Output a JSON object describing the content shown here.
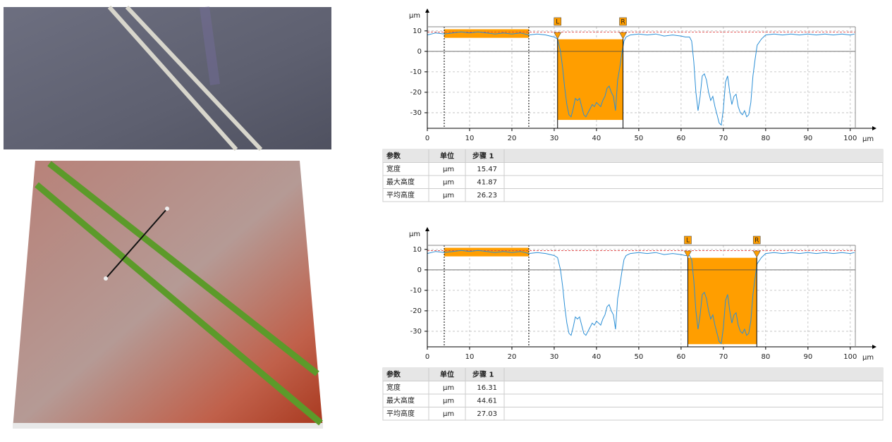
{
  "chart_data": [
    {
      "type": "line",
      "ylabel": "μm",
      "xlabel": "μm",
      "xlim": [
        0,
        101.2
      ],
      "ylim": [
        -37.6,
        12
      ],
      "xticks": [
        0,
        10,
        20,
        30,
        40,
        50,
        60,
        70,
        80,
        90,
        100
      ],
      "yticks": [
        -30,
        -20,
        -10,
        0,
        10
      ],
      "grid": true,
      "ref_line": 9.4,
      "reference": {
        "x": [
          4,
          24
        ],
        "y": [
          6.6,
          10.8
        ]
      },
      "markers": [
        {
          "label": "L",
          "x": 30.8
        },
        {
          "label": "R",
          "x": 46.27
        }
      ],
      "measure_y": [
        -33.5,
        5.9
      ],
      "measure_color": "#ff9e00",
      "series": [
        {
          "color": "#2b8fd6",
          "x": [
            0,
            2,
            4,
            6,
            8,
            10,
            12,
            14,
            16,
            18,
            20,
            22,
            24,
            26,
            28,
            30,
            30.8,
            31.5,
            32,
            32.5,
            33,
            33.5,
            34,
            34.5,
            35,
            35.5,
            36,
            36.5,
            37,
            37.5,
            38,
            38.5,
            39,
            39.5,
            40,
            40.5,
            41,
            41.5,
            42,
            42.5,
            43,
            43.5,
            44,
            44.5,
            45,
            45.5,
            46,
            46.5,
            47,
            48,
            50,
            52,
            54,
            56,
            58,
            60,
            61,
            62,
            62.5,
            63,
            63.5,
            64,
            64.5,
            65,
            65.5,
            66,
            66.5,
            67,
            67.5,
            68,
            68.5,
            69,
            69.5,
            70,
            70.5,
            71,
            71.5,
            72,
            72.5,
            73,
            73.5,
            74,
            74.5,
            75,
            75.5,
            76,
            76.5,
            77,
            77.5,
            78,
            79,
            80,
            82,
            84,
            86,
            88,
            90,
            92,
            94,
            96,
            98,
            100,
            101
          ],
          "values": [
            8,
            9,
            8.5,
            9,
            9.5,
            9,
            9.5,
            9,
            8.5,
            9,
            8.5,
            9,
            8,
            8.5,
            8,
            7,
            6,
            0,
            -8,
            -18,
            -26,
            -31,
            -32,
            -28,
            -23,
            -24,
            -23,
            -27,
            -31,
            -32,
            -30,
            -28,
            -26,
            -27,
            -25,
            -26,
            -27,
            -24,
            -22,
            -18,
            -17,
            -20,
            -22,
            -29,
            -14,
            -8,
            -1,
            5,
            7,
            8,
            8.5,
            8,
            8.5,
            7.5,
            8,
            7.5,
            7,
            7,
            5,
            -5,
            -20,
            -29,
            -22,
            -12,
            -11,
            -14,
            -20,
            -24,
            -22,
            -27,
            -31,
            -35,
            -36,
            -28,
            -15,
            -12,
            -20,
            -26,
            -22,
            -21,
            -27,
            -30,
            -31,
            -29,
            -32,
            -31,
            -25,
            -12,
            -4,
            3,
            6,
            8,
            8.5,
            8,
            8.5,
            8,
            8.5,
            8,
            8.5,
            8,
            8.5,
            8,
            8.5
          ]
        }
      ]
    },
    {
      "type": "line",
      "ylabel": "μm",
      "xlabel": "μm",
      "xlim": [
        0,
        101.2
      ],
      "ylim": [
        -37.6,
        12
      ],
      "xticks": [
        0,
        10,
        20,
        30,
        40,
        50,
        60,
        70,
        80,
        90,
        100
      ],
      "yticks": [
        -30,
        -20,
        -10,
        0,
        10
      ],
      "grid": true,
      "ref_line": 9.4,
      "reference": {
        "x": [
          4,
          24
        ],
        "y": [
          6.6,
          10.8
        ]
      },
      "markers": [
        {
          "label": "L",
          "x": 61.6
        },
        {
          "label": "R",
          "x": 77.9
        }
      ],
      "measure_y": [
        -36.3,
        5.9
      ],
      "measure_color": "#ff9e00",
      "series": [
        {
          "color": "#2b8fd6",
          "x": [
            0,
            2,
            4,
            6,
            8,
            10,
            12,
            14,
            16,
            18,
            20,
            22,
            24,
            26,
            28,
            30,
            30.8,
            31.5,
            32,
            32.5,
            33,
            33.5,
            34,
            34.5,
            35,
            35.5,
            36,
            36.5,
            37,
            37.5,
            38,
            38.5,
            39,
            39.5,
            40,
            40.5,
            41,
            41.5,
            42,
            42.5,
            43,
            43.5,
            44,
            44.5,
            45,
            45.5,
            46,
            46.5,
            47,
            48,
            50,
            52,
            54,
            56,
            58,
            60,
            61,
            62,
            62.5,
            63,
            63.5,
            64,
            64.5,
            65,
            65.5,
            66,
            66.5,
            67,
            67.5,
            68,
            68.5,
            69,
            69.5,
            70,
            70.5,
            71,
            71.5,
            72,
            72.5,
            73,
            73.5,
            74,
            74.5,
            75,
            75.5,
            76,
            76.5,
            77,
            77.5,
            78,
            79,
            80,
            82,
            84,
            86,
            88,
            90,
            92,
            94,
            96,
            98,
            100,
            101
          ],
          "values": [
            8,
            9,
            8.5,
            9,
            9.5,
            9,
            9.5,
            9,
            8.5,
            9,
            8.5,
            9,
            8,
            8.5,
            8,
            7,
            6,
            0,
            -8,
            -18,
            -26,
            -31,
            -32,
            -28,
            -23,
            -24,
            -23,
            -27,
            -31,
            -32,
            -30,
            -28,
            -26,
            -27,
            -25,
            -26,
            -27,
            -24,
            -22,
            -18,
            -17,
            -20,
            -22,
            -29,
            -14,
            -8,
            -1,
            5,
            7,
            8,
            8.5,
            8,
            8.5,
            7.5,
            8,
            7.5,
            7,
            7,
            5,
            -5,
            -20,
            -29,
            -22,
            -12,
            -11,
            -14,
            -20,
            -24,
            -22,
            -27,
            -31,
            -35,
            -36,
            -28,
            -15,
            -12,
            -20,
            -26,
            -22,
            -21,
            -27,
            -30,
            -31,
            -29,
            -32,
            -31,
            -25,
            -12,
            -4,
            3,
            6,
            8,
            8.5,
            8,
            8.5,
            8,
            8.5,
            8,
            8.5,
            8,
            8.5,
            8,
            8.5
          ]
        }
      ]
    }
  ],
  "tables": [
    {
      "header": [
        "参数",
        "单位",
        "步骤 1"
      ],
      "rows": [
        [
          "宽度",
          "μm",
          15.47
        ],
        [
          "最大高度",
          "μm",
          41.87
        ],
        [
          "平均高度",
          "μm",
          26.23
        ]
      ]
    },
    {
      "header": [
        "参数",
        "单位",
        "步骤 1"
      ],
      "rows": [
        [
          "宽度",
          "μm",
          16.31
        ],
        [
          "最大高度",
          "μm",
          44.61
        ],
        [
          "平均高度",
          "μm",
          27.03
        ]
      ]
    }
  ]
}
